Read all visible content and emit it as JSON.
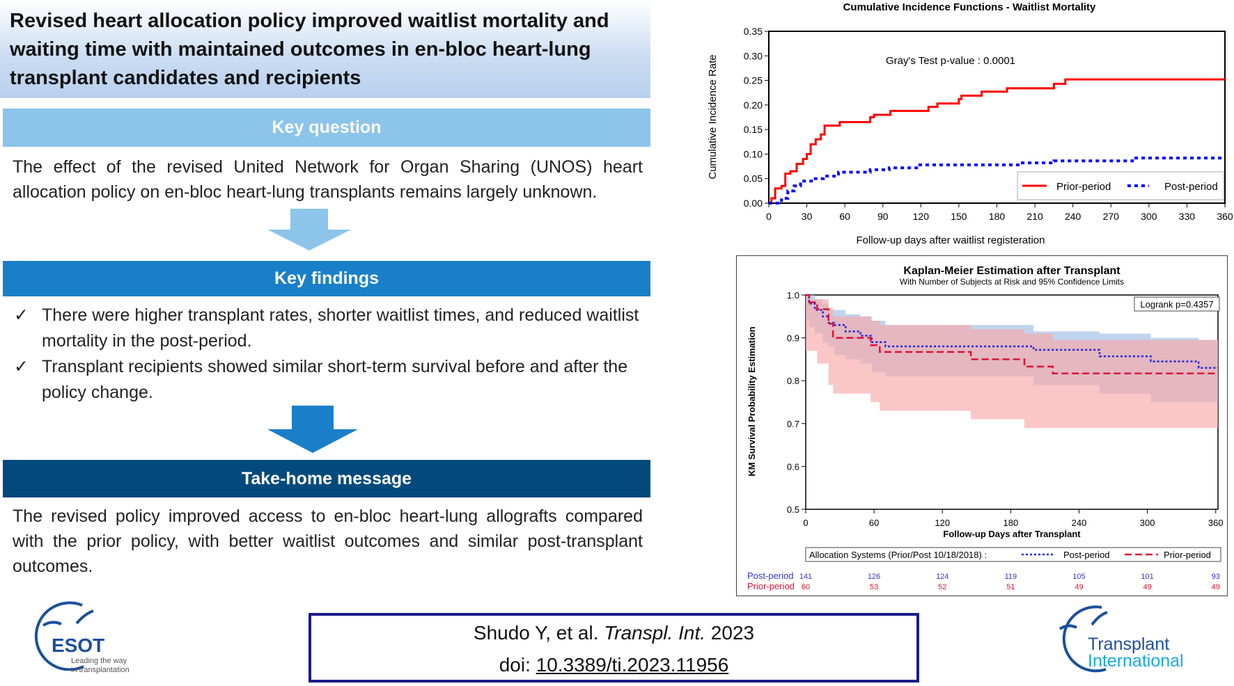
{
  "title": "Revised heart allocation policy improved waitlist mortality and waiting time with maintained outcomes in en-bloc heart-lung transplant candidates and recipients",
  "key_question": {
    "label": "Key question",
    "text": "The effect of the revised United Network for Organ Sharing (UNOS) heart allocation policy on en-bloc heart-lung transplants remains largely unknown.",
    "color": "#8cc4ea"
  },
  "key_findings": {
    "label": "Key findings",
    "color": "#1a7fc9",
    "items": [
      "There were higher transplant rates, shorter waitlist times, and reduced waitlist mortality in the post-period.",
      "Transplant recipients showed similar short-term survival before and after the policy change."
    ],
    "check": "✓"
  },
  "take_home": {
    "label": "Take-home  message",
    "color": "#034a7c",
    "text": "The revised policy improved access to en-bloc heart-lung allografts compared with the prior policy, with better waitlist outcomes and similar post-transplant outcomes."
  },
  "citation": {
    "authors": "Shudo Y, et al.",
    "journal": "Transpl. Int.",
    "year": "2023",
    "doi_label": "doi:",
    "doi": "10.3389/ti.2023.11956"
  },
  "logos": {
    "esot": {
      "name": "ESOT",
      "tagline1": "Leading the way",
      "tagline2": "in transplantation"
    },
    "ti": {
      "line1": "Transplant",
      "line2": "International"
    }
  },
  "chart_data": [
    {
      "type": "line",
      "title": "Cumulative Incidence Functions  -  Waitlist Mortality",
      "xlabel": "Follow-up days after waitlist registeration",
      "ylabel": "Cumulative  Incidence  Rate",
      "xlim": [
        0,
        360
      ],
      "ylim": [
        0,
        0.35
      ],
      "xticks": [
        0,
        30,
        60,
        90,
        120,
        150,
        180,
        210,
        240,
        270,
        300,
        330,
        360
      ],
      "yticks": [
        "0.00",
        "0.05",
        "0.10",
        "0.15",
        "0.20",
        "0.25",
        "0.30",
        "0.35"
      ],
      "annotation": "Gray's Test  p-value :  0.0001",
      "legend_position": "bottom-right",
      "step": true,
      "series": [
        {
          "name": "Prior-period",
          "color": "#ff0000",
          "style": "solid",
          "points": [
            [
              0,
              0
            ],
            [
              2,
              0.01
            ],
            [
              5,
              0.03
            ],
            [
              10,
              0.035
            ],
            [
              13,
              0.06
            ],
            [
              17,
              0.065
            ],
            [
              22,
              0.08
            ],
            [
              27,
              0.09
            ],
            [
              30,
              0.1
            ],
            [
              33,
              0.12
            ],
            [
              37,
              0.13
            ],
            [
              41,
              0.14
            ],
            [
              44,
              0.158
            ],
            [
              56,
              0.165
            ],
            [
              80,
              0.175
            ],
            [
              83,
              0.18
            ],
            [
              96,
              0.188
            ],
            [
              126,
              0.196
            ],
            [
              133,
              0.203
            ],
            [
              150,
              0.212
            ],
            [
              152,
              0.219
            ],
            [
              168,
              0.227
            ],
            [
              188,
              0.234
            ],
            [
              225,
              0.243
            ],
            [
              234,
              0.252
            ],
            [
              360,
              0.252
            ]
          ]
        },
        {
          "name": "Post-period",
          "color": "#0000ff",
          "style": "dotted",
          "points": [
            [
              0,
              0
            ],
            [
              10,
              0.01
            ],
            [
              15,
              0.025
            ],
            [
              20,
              0.035
            ],
            [
              25,
              0.045
            ],
            [
              35,
              0.05
            ],
            [
              43,
              0.055
            ],
            [
              55,
              0.063
            ],
            [
              80,
              0.068
            ],
            [
              95,
              0.072
            ],
            [
              118,
              0.078
            ],
            [
              200,
              0.082
            ],
            [
              225,
              0.086
            ],
            [
              287,
              0.092
            ],
            [
              360,
              0.092
            ]
          ]
        }
      ]
    },
    {
      "type": "line",
      "title": "Kaplan-Meier Estimation after Transplant",
      "subtitle": "With Number of Subjects at Risk and 95% Confidence Limits",
      "xlabel": "Follow-up  Days  after  Transplant",
      "ylabel": "KM Survival Probability Estimation",
      "xlim": [
        0,
        362
      ],
      "ylim": [
        0.5,
        1.0
      ],
      "xticks": [
        0,
        60,
        120,
        180,
        240,
        300,
        360
      ],
      "yticks": [
        "0.5",
        "0.6",
        "0.7",
        "0.8",
        "0.9",
        "1.0"
      ],
      "annotation": "Logrank p=0.4357",
      "legend_title": "Allocation Systems (Prior/Post 10/18/2018) :",
      "legend_position": "bottom",
      "step": true,
      "series": [
        {
          "name": "Post-period",
          "color": "#2222dd",
          "band_color": "#9fbde6",
          "style": "dotted",
          "points_x_y_lo_hi": [
            [
              0,
              1,
              1,
              1
            ],
            [
              3,
              0.98,
              0.94,
              1
            ],
            [
              8,
              0.965,
              0.925,
              0.99
            ],
            [
              15,
              0.95,
              0.91,
              0.98
            ],
            [
              20,
              0.935,
              0.89,
              0.965
            ],
            [
              25,
              0.93,
              0.88,
              0.965
            ],
            [
              35,
              0.915,
              0.86,
              0.955
            ],
            [
              48,
              0.905,
              0.85,
              0.95
            ],
            [
              58,
              0.89,
              0.84,
              0.94
            ],
            [
              70,
              0.88,
              0.82,
              0.93
            ],
            [
              200,
              0.872,
              0.81,
              0.915
            ],
            [
              258,
              0.857,
              0.79,
              0.91
            ],
            [
              303,
              0.845,
              0.77,
              0.9
            ],
            [
              345,
              0.83,
              0.75,
              0.895
            ],
            [
              362,
              0.83,
              0.75,
              0.895
            ]
          ],
          "at_risk": [
            141,
            126,
            124,
            119,
            105,
            101,
            93
          ]
        },
        {
          "name": "Prior-period",
          "color": "#dd1133",
          "band_color": "#f7a8a8",
          "style": "dashed",
          "points_x_y_lo_hi": [
            [
              0,
              1,
              1,
              1
            ],
            [
              3,
              0.983,
              0.87,
              0.99
            ],
            [
              10,
              0.967,
              0.87,
              0.99
            ],
            [
              20,
              0.933,
              0.84,
              0.97
            ],
            [
              24,
              0.9,
              0.79,
              0.95
            ],
            [
              57,
              0.883,
              0.77,
              0.94
            ],
            [
              65,
              0.867,
              0.75,
              0.93
            ],
            [
              145,
              0.85,
              0.73,
              0.92
            ],
            [
              192,
              0.833,
              0.71,
              0.91
            ],
            [
              217,
              0.817,
              0.69,
              0.895
            ],
            [
              362,
              0.817,
              0.69,
              0.895
            ]
          ],
          "at_risk": [
            60,
            53,
            52,
            51,
            49,
            49,
            49
          ]
        }
      ]
    }
  ]
}
